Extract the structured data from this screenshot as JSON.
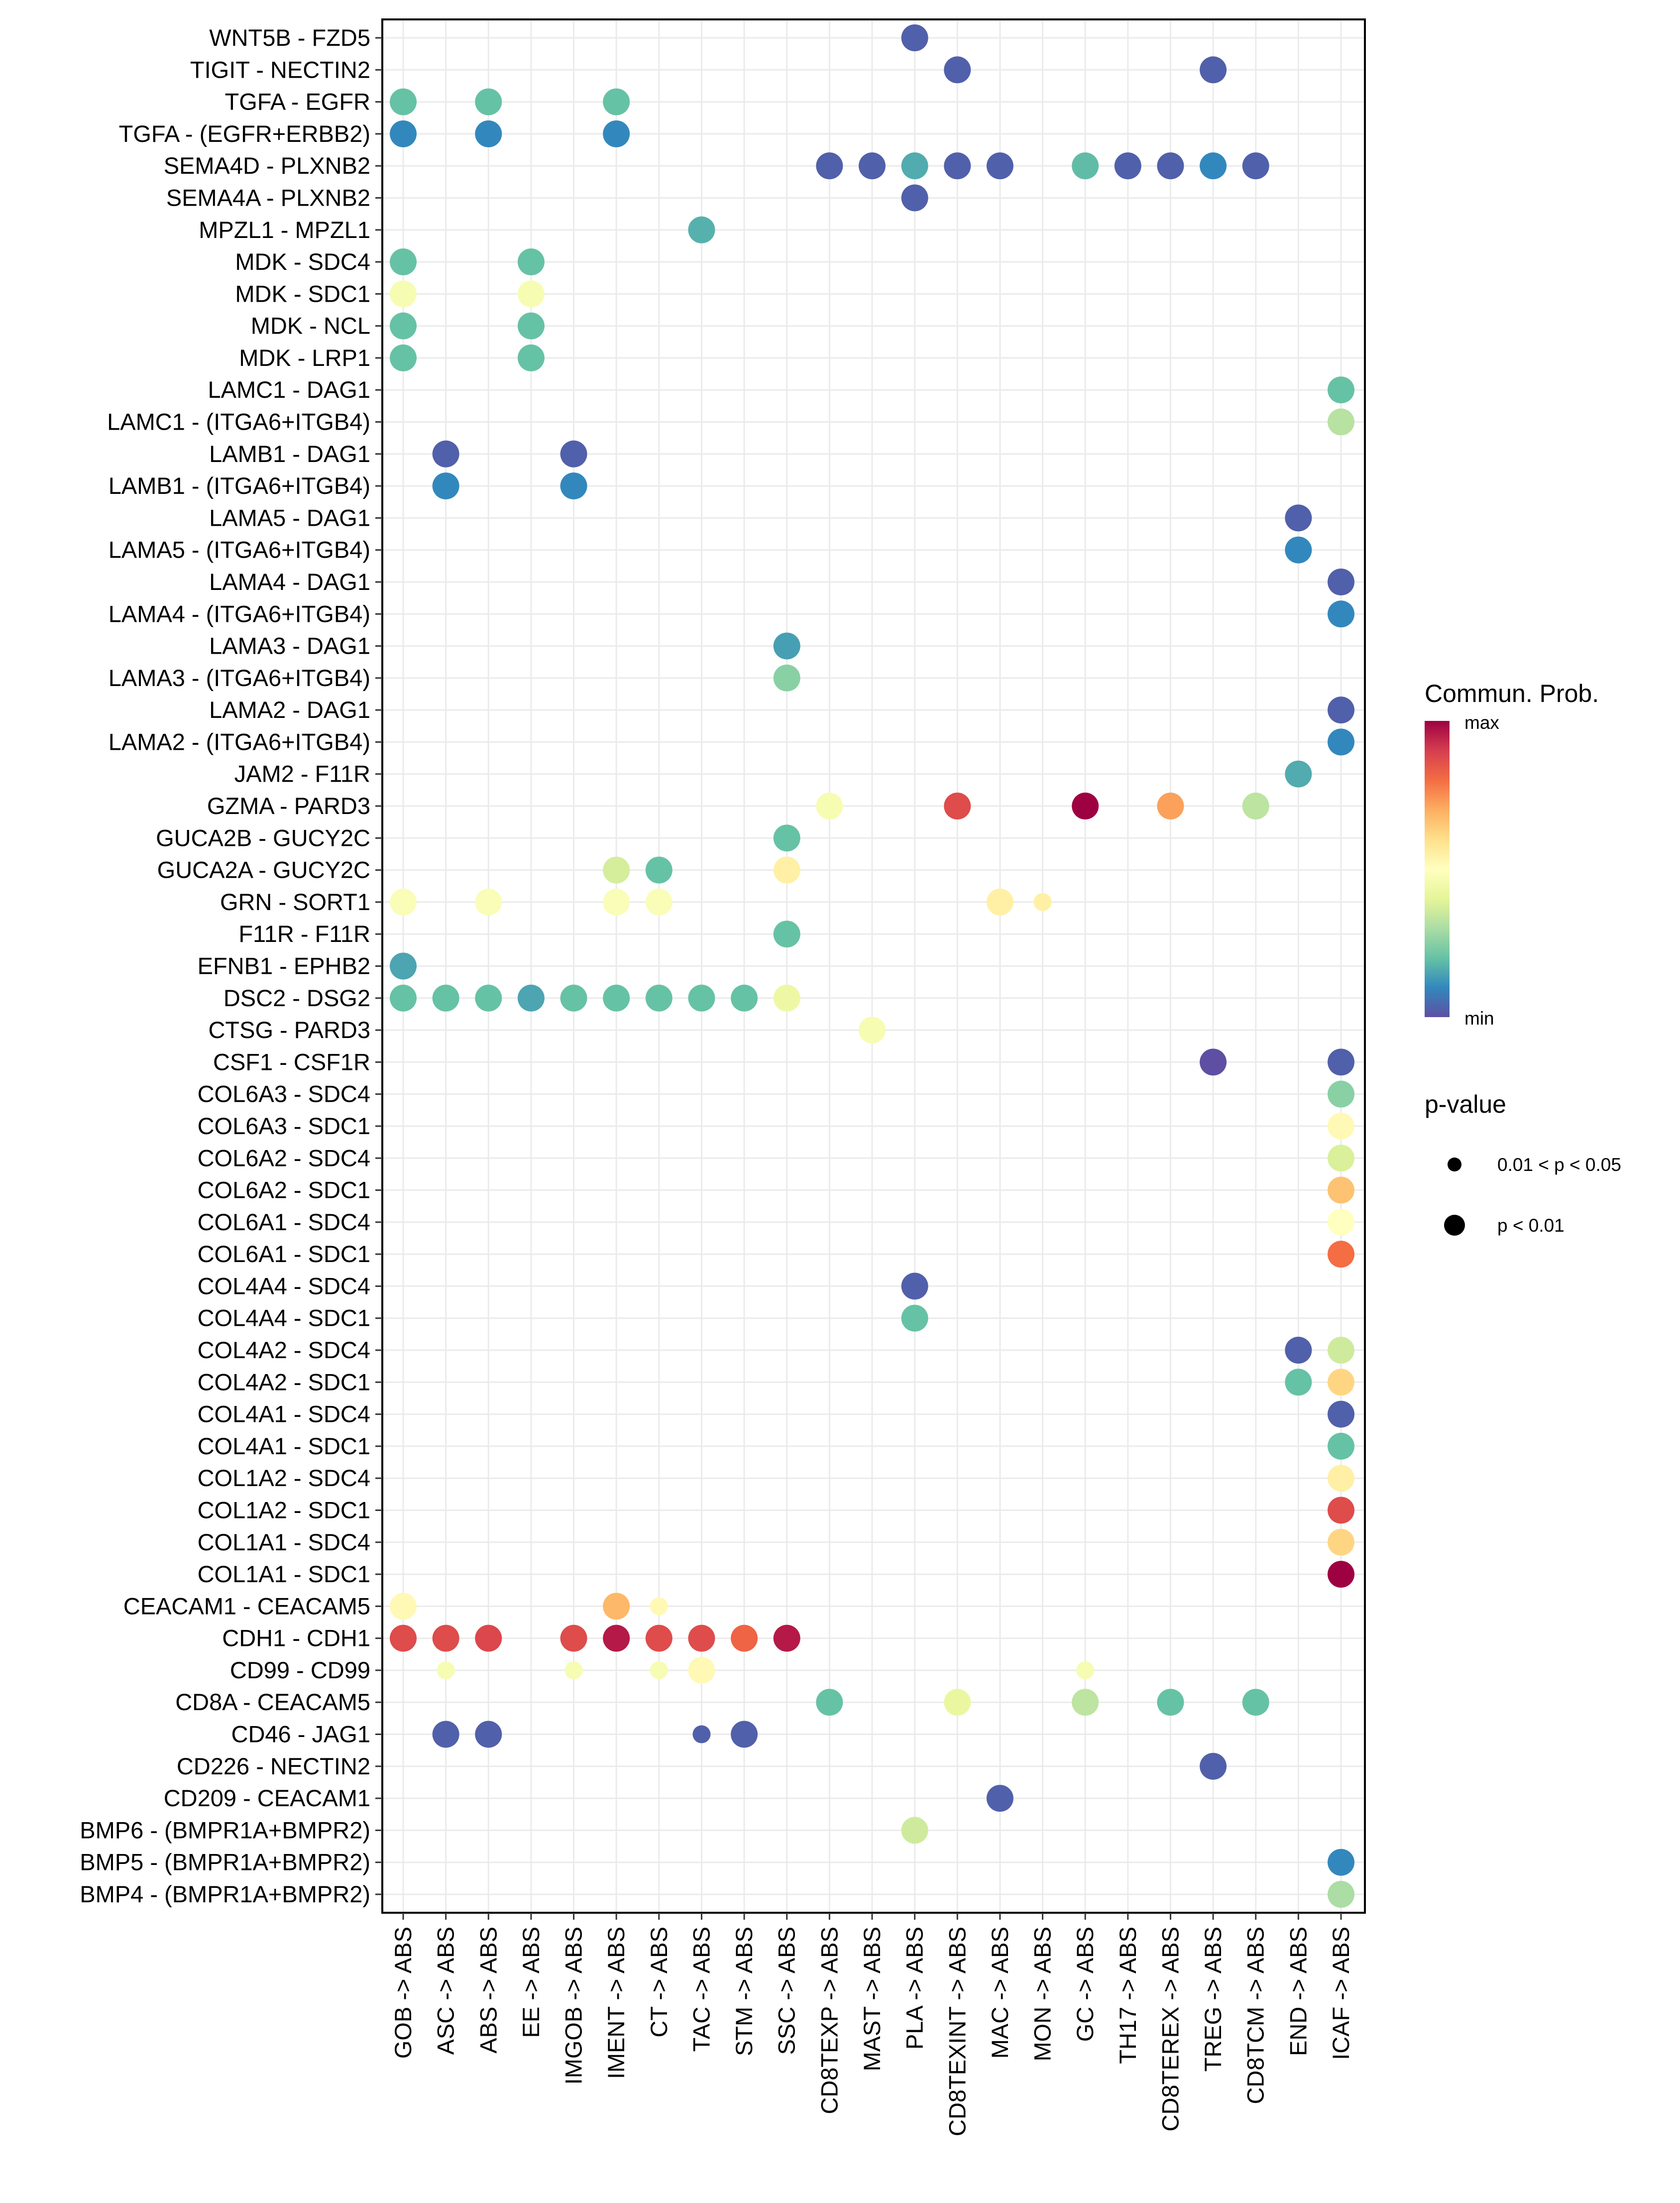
{
  "chart_data": {
    "type": "scatter",
    "subtype": "dot-matrix",
    "title": "",
    "xlabel": "",
    "ylabel": "",
    "grid": true,
    "x_categories": [
      "GOB -> ABS",
      "ASC -> ABS",
      "ABS -> ABS",
      "EE -> ABS",
      "IMGOB -> ABS",
      "IMENT -> ABS",
      "CT -> ABS",
      "TAC -> ABS",
      "STM -> ABS",
      "SSC -> ABS",
      "CD8TEXP -> ABS",
      "MAST -> ABS",
      "PLA -> ABS",
      "CD8TEXINT -> ABS",
      "MAC -> ABS",
      "MON -> ABS",
      "GC -> ABS",
      "TH17 -> ABS",
      "CD8TEREX -> ABS",
      "TREG -> ABS",
      "CD8TCM -> ABS",
      "END -> ABS",
      "ICAF -> ABS"
    ],
    "y_categories": [
      "WNT5B - FZD5",
      "TIGIT - NECTIN2",
      "TGFA - EGFR",
      "TGFA - (EGFR+ERBB2)",
      "SEMA4D - PLXNB2",
      "SEMA4A - PLXNB2",
      "MPZL1 - MPZL1",
      "MDK - SDC4",
      "MDK - SDC1",
      "MDK - NCL",
      "MDK - LRP1",
      "LAMC1 - DAG1",
      "LAMC1 - (ITGA6+ITGB4)",
      "LAMB1 - DAG1",
      "LAMB1 - (ITGA6+ITGB4)",
      "LAMA5 - DAG1",
      "LAMA5 - (ITGA6+ITGB4)",
      "LAMA4 - DAG1",
      "LAMA4 - (ITGA6+ITGB4)",
      "LAMA3 - DAG1",
      "LAMA3 - (ITGA6+ITGB4)",
      "LAMA2 - DAG1",
      "LAMA2 - (ITGA6+ITGB4)",
      "JAM2 - F11R",
      "GZMA - PARD3",
      "GUCA2B - GUCY2C",
      "GUCA2A - GUCY2C",
      "GRN - SORT1",
      "F11R - F11R",
      "EFNB1 - EPHB2",
      "DSC2 - DSG2",
      "CTSG - PARD3",
      "CSF1 - CSF1R",
      "COL6A3 - SDC4",
      "COL6A3 - SDC1",
      "COL6A2 - SDC4",
      "COL6A2 - SDC1",
      "COL6A1 - SDC4",
      "COL6A1 - SDC1",
      "COL4A4 - SDC4",
      "COL4A4 - SDC1",
      "COL4A2 - SDC4",
      "COL4A2 - SDC1",
      "COL4A1 - SDC4",
      "COL4A1 - SDC1",
      "COL1A2 - SDC4",
      "COL1A2 - SDC1",
      "COL1A1 - SDC4",
      "COL1A1 - SDC1",
      "CEACAM1 - CEACAM5",
      "CDH1 - CDH1",
      "CD99 - CD99",
      "CD8A - CEACAM5",
      "CD46 - JAG1",
      "CD226 - NECTIN2",
      "CD209 - CEACAM1",
      "BMP6 - (BMPR1A+BMPR2)",
      "BMP5 - (BMPR1A+BMPR2)",
      "BMP4 - (BMPR1A+BMPR2)"
    ],
    "value_note": "prob = relative communication probability on the colorbar scale (0 = min, 1 = max); pval: 1 = 'p < 0.01', 2 = '0.01 < p < 0.05'",
    "points": [
      {
        "y": "WNT5B - FZD5",
        "x": "PLA -> ABS",
        "prob": 0.03,
        "pval": 1
      },
      {
        "y": "TIGIT - NECTIN2",
        "x": "CD8TEXINT -> ABS",
        "prob": 0.03,
        "pval": 1
      },
      {
        "y": "TIGIT - NECTIN2",
        "x": "TREG -> ABS",
        "prob": 0.03,
        "pval": 1
      },
      {
        "y": "TGFA - EGFR",
        "x": "GOB -> ABS",
        "prob": 0.2,
        "pval": 1
      },
      {
        "y": "TGFA - EGFR",
        "x": "ABS -> ABS",
        "prob": 0.2,
        "pval": 1
      },
      {
        "y": "TGFA - EGFR",
        "x": "IMENT -> ABS",
        "prob": 0.2,
        "pval": 1
      },
      {
        "y": "TGFA - (EGFR+ERBB2)",
        "x": "GOB -> ABS",
        "prob": 0.1,
        "pval": 1
      },
      {
        "y": "TGFA - (EGFR+ERBB2)",
        "x": "ABS -> ABS",
        "prob": 0.1,
        "pval": 1
      },
      {
        "y": "TGFA - (EGFR+ERBB2)",
        "x": "IMENT -> ABS",
        "prob": 0.1,
        "pval": 1
      },
      {
        "y": "SEMA4D - PLXNB2",
        "x": "CD8TEXP -> ABS",
        "prob": 0.03,
        "pval": 1
      },
      {
        "y": "SEMA4D - PLXNB2",
        "x": "MAST -> ABS",
        "prob": 0.03,
        "pval": 1
      },
      {
        "y": "SEMA4D - PLXNB2",
        "x": "PLA -> ABS",
        "prob": 0.16,
        "pval": 1
      },
      {
        "y": "SEMA4D - PLXNB2",
        "x": "CD8TEXINT -> ABS",
        "prob": 0.03,
        "pval": 1
      },
      {
        "y": "SEMA4D - PLXNB2",
        "x": "MAC -> ABS",
        "prob": 0.03,
        "pval": 1
      },
      {
        "y": "SEMA4D - PLXNB2",
        "x": "GC -> ABS",
        "prob": 0.19,
        "pval": 1
      },
      {
        "y": "SEMA4D - PLXNB2",
        "x": "TH17 -> ABS",
        "prob": 0.03,
        "pval": 1
      },
      {
        "y": "SEMA4D - PLXNB2",
        "x": "CD8TEREX -> ABS",
        "prob": 0.03,
        "pval": 1
      },
      {
        "y": "SEMA4D - PLXNB2",
        "x": "TREG -> ABS",
        "prob": 0.1,
        "pval": 1
      },
      {
        "y": "SEMA4D - PLXNB2",
        "x": "CD8TCM -> ABS",
        "prob": 0.03,
        "pval": 1
      },
      {
        "y": "SEMA4A - PLXNB2",
        "x": "PLA -> ABS",
        "prob": 0.03,
        "pval": 1
      },
      {
        "y": "MPZL1 - MPZL1",
        "x": "TAC -> ABS",
        "prob": 0.17,
        "pval": 1
      },
      {
        "y": "MDK - SDC4",
        "x": "GOB -> ABS",
        "prob": 0.2,
        "pval": 1
      },
      {
        "y": "MDK - SDC4",
        "x": "EE -> ABS",
        "prob": 0.2,
        "pval": 1
      },
      {
        "y": "MDK - SDC1",
        "x": "GOB -> ABS",
        "prob": 0.47,
        "pval": 1
      },
      {
        "y": "MDK - SDC1",
        "x": "EE -> ABS",
        "prob": 0.47,
        "pval": 1
      },
      {
        "y": "MDK - NCL",
        "x": "GOB -> ABS",
        "prob": 0.2,
        "pval": 1
      },
      {
        "y": "MDK - NCL",
        "x": "EE -> ABS",
        "prob": 0.2,
        "pval": 1
      },
      {
        "y": "MDK - LRP1",
        "x": "GOB -> ABS",
        "prob": 0.2,
        "pval": 1
      },
      {
        "y": "MDK - LRP1",
        "x": "EE -> ABS",
        "prob": 0.2,
        "pval": 1
      },
      {
        "y": "LAMC1 - DAG1",
        "x": "ICAF -> ABS",
        "prob": 0.2,
        "pval": 1
      },
      {
        "y": "LAMC1 - (ITGA6+ITGB4)",
        "x": "ICAF -> ABS",
        "prob": 0.32,
        "pval": 1
      },
      {
        "y": "LAMB1 - DAG1",
        "x": "ASC -> ABS",
        "prob": 0.03,
        "pval": 1
      },
      {
        "y": "LAMB1 - DAG1",
        "x": "IMGOB -> ABS",
        "prob": 0.03,
        "pval": 1
      },
      {
        "y": "LAMB1 - (ITGA6+ITGB4)",
        "x": "ASC -> ABS",
        "prob": 0.1,
        "pval": 1
      },
      {
        "y": "LAMB1 - (ITGA6+ITGB4)",
        "x": "IMGOB -> ABS",
        "prob": 0.1,
        "pval": 1
      },
      {
        "y": "LAMA5 - DAG1",
        "x": "END -> ABS",
        "prob": 0.03,
        "pval": 1
      },
      {
        "y": "LAMA5 - (ITGA6+ITGB4)",
        "x": "END -> ABS",
        "prob": 0.1,
        "pval": 1
      },
      {
        "y": "LAMA4 - DAG1",
        "x": "ICAF -> ABS",
        "prob": 0.03,
        "pval": 1
      },
      {
        "y": "LAMA4 - (ITGA6+ITGB4)",
        "x": "ICAF -> ABS",
        "prob": 0.1,
        "pval": 1
      },
      {
        "y": "LAMA3 - DAG1",
        "x": "SSC -> ABS",
        "prob": 0.14,
        "pval": 1
      },
      {
        "y": "LAMA3 - (ITGA6+ITGB4)",
        "x": "SSC -> ABS",
        "prob": 0.25,
        "pval": 1
      },
      {
        "y": "LAMA2 - DAG1",
        "x": "ICAF -> ABS",
        "prob": 0.03,
        "pval": 1
      },
      {
        "y": "LAMA2 - (ITGA6+ITGB4)",
        "x": "ICAF -> ABS",
        "prob": 0.1,
        "pval": 1
      },
      {
        "y": "JAM2 - F11R",
        "x": "END -> ABS",
        "prob": 0.16,
        "pval": 1
      },
      {
        "y": "GZMA - PARD3",
        "x": "CD8TEXP -> ABS",
        "prob": 0.47,
        "pval": 1
      },
      {
        "y": "GZMA - PARD3",
        "x": "CD8TEXINT -> ABS",
        "prob": 0.87,
        "pval": 1
      },
      {
        "y": "GZMA - PARD3",
        "x": "GC -> ABS",
        "prob": 1.0,
        "pval": 1
      },
      {
        "y": "GZMA - PARD3",
        "x": "CD8TEREX -> ABS",
        "prob": 0.72,
        "pval": 1
      },
      {
        "y": "GZMA - PARD3",
        "x": "CD8TCM -> ABS",
        "prob": 0.33,
        "pval": 1
      },
      {
        "y": "GUCA2B - GUCY2C",
        "x": "SSC -> ABS",
        "prob": 0.2,
        "pval": 1
      },
      {
        "y": "GUCA2A - GUCY2C",
        "x": "IMENT -> ABS",
        "prob": 0.37,
        "pval": 1
      },
      {
        "y": "GUCA2A - GUCY2C",
        "x": "CT -> ABS",
        "prob": 0.2,
        "pval": 1
      },
      {
        "y": "GUCA2A - GUCY2C",
        "x": "SSC -> ABS",
        "prob": 0.55,
        "pval": 1
      },
      {
        "y": "GRN - SORT1",
        "x": "GOB -> ABS",
        "prob": 0.48,
        "pval": 1
      },
      {
        "y": "GRN - SORT1",
        "x": "ABS -> ABS",
        "prob": 0.48,
        "pval": 1
      },
      {
        "y": "GRN - SORT1",
        "x": "IMENT -> ABS",
        "prob": 0.48,
        "pval": 1
      },
      {
        "y": "GRN - SORT1",
        "x": "CT -> ABS",
        "prob": 0.48,
        "pval": 1
      },
      {
        "y": "GRN - SORT1",
        "x": "MAC -> ABS",
        "prob": 0.55,
        "pval": 1
      },
      {
        "y": "GRN - SORT1",
        "x": "MON -> ABS",
        "prob": 0.55,
        "pval": 2
      },
      {
        "y": "F11R - F11R",
        "x": "SSC -> ABS",
        "prob": 0.2,
        "pval": 1
      },
      {
        "y": "EFNB1 - EPHB2",
        "x": "GOB -> ABS",
        "prob": 0.15,
        "pval": 1
      },
      {
        "y": "DSC2 - DSG2",
        "x": "GOB -> ABS",
        "prob": 0.2,
        "pval": 1
      },
      {
        "y": "DSC2 - DSG2",
        "x": "ASC -> ABS",
        "prob": 0.2,
        "pval": 1
      },
      {
        "y": "DSC2 - DSG2",
        "x": "ABS -> ABS",
        "prob": 0.2,
        "pval": 1
      },
      {
        "y": "DSC2 - DSG2",
        "x": "EE -> ABS",
        "prob": 0.15,
        "pval": 1
      },
      {
        "y": "DSC2 - DSG2",
        "x": "IMGOB -> ABS",
        "prob": 0.2,
        "pval": 1
      },
      {
        "y": "DSC2 - DSG2",
        "x": "IMENT -> ABS",
        "prob": 0.2,
        "pval": 1
      },
      {
        "y": "DSC2 - DSG2",
        "x": "CT -> ABS",
        "prob": 0.2,
        "pval": 1
      },
      {
        "y": "DSC2 - DSG2",
        "x": "TAC -> ABS",
        "prob": 0.2,
        "pval": 1
      },
      {
        "y": "DSC2 - DSG2",
        "x": "STM -> ABS",
        "prob": 0.2,
        "pval": 1
      },
      {
        "y": "DSC2 - DSG2",
        "x": "SSC -> ABS",
        "prob": 0.43,
        "pval": 1
      },
      {
        "y": "CTSG - PARD3",
        "x": "MAST -> ABS",
        "prob": 0.47,
        "pval": 1
      },
      {
        "y": "CSF1 - CSF1R",
        "x": "TREG -> ABS",
        "prob": 0.0,
        "pval": 1
      },
      {
        "y": "CSF1 - CSF1R",
        "x": "ICAF -> ABS",
        "prob": 0.03,
        "pval": 1
      },
      {
        "y": "COL6A3 - SDC4",
        "x": "ICAF -> ABS",
        "prob": 0.25,
        "pval": 1
      },
      {
        "y": "COL6A3 - SDC1",
        "x": "ICAF -> ABS",
        "prob": 0.52,
        "pval": 1
      },
      {
        "y": "COL6A2 - SDC4",
        "x": "ICAF -> ABS",
        "prob": 0.38,
        "pval": 1
      },
      {
        "y": "COL6A2 - SDC1",
        "x": "ICAF -> ABS",
        "prob": 0.66,
        "pval": 1
      },
      {
        "y": "COL6A1 - SDC4",
        "x": "ICAF -> ABS",
        "prob": 0.5,
        "pval": 1
      },
      {
        "y": "COL6A1 - SDC1",
        "x": "ICAF -> ABS",
        "prob": 0.8,
        "pval": 1
      },
      {
        "y": "COL4A4 - SDC4",
        "x": "PLA -> ABS",
        "prob": 0.03,
        "pval": 1
      },
      {
        "y": "COL4A4 - SDC1",
        "x": "PLA -> ABS",
        "prob": 0.2,
        "pval": 1
      },
      {
        "y": "COL4A2 - SDC4",
        "x": "END -> ABS",
        "prob": 0.03,
        "pval": 1
      },
      {
        "y": "COL4A2 - SDC4",
        "x": "ICAF -> ABS",
        "prob": 0.36,
        "pval": 1
      },
      {
        "y": "COL4A2 - SDC1",
        "x": "END -> ABS",
        "prob": 0.2,
        "pval": 1
      },
      {
        "y": "COL4A2 - SDC1",
        "x": "ICAF -> ABS",
        "prob": 0.62,
        "pval": 1
      },
      {
        "y": "COL4A1 - SDC4",
        "x": "ICAF -> ABS",
        "prob": 0.03,
        "pval": 1
      },
      {
        "y": "COL4A1 - SDC1",
        "x": "ICAF -> ABS",
        "prob": 0.2,
        "pval": 1
      },
      {
        "y": "COL1A2 - SDC4",
        "x": "ICAF -> ABS",
        "prob": 0.55,
        "pval": 1
      },
      {
        "y": "COL1A2 - SDC1",
        "x": "ICAF -> ABS",
        "prob": 0.87,
        "pval": 1
      },
      {
        "y": "COL1A1 - SDC4",
        "x": "ICAF -> ABS",
        "prob": 0.62,
        "pval": 1
      },
      {
        "y": "COL1A1 - SDC1",
        "x": "ICAF -> ABS",
        "prob": 1.0,
        "pval": 1
      },
      {
        "y": "CEACAM1 - CEACAM5",
        "x": "GOB -> ABS",
        "prob": 0.52,
        "pval": 1
      },
      {
        "y": "CEACAM1 - CEACAM5",
        "x": "IMENT -> ABS",
        "prob": 0.68,
        "pval": 1
      },
      {
        "y": "CEACAM1 - CEACAM5",
        "x": "CT -> ABS",
        "prob": 0.52,
        "pval": 2
      },
      {
        "y": "CDH1 - CDH1",
        "x": "GOB -> ABS",
        "prob": 0.87,
        "pval": 1
      },
      {
        "y": "CDH1 - CDH1",
        "x": "ASC -> ABS",
        "prob": 0.87,
        "pval": 1
      },
      {
        "y": "CDH1 - CDH1",
        "x": "ABS -> ABS",
        "prob": 0.88,
        "pval": 1
      },
      {
        "y": "CDH1 - CDH1",
        "x": "IMGOB -> ABS",
        "prob": 0.87,
        "pval": 1
      },
      {
        "y": "CDH1 - CDH1",
        "x": "IMENT -> ABS",
        "prob": 0.96,
        "pval": 1
      },
      {
        "y": "CDH1 - CDH1",
        "x": "CT -> ABS",
        "prob": 0.87,
        "pval": 1
      },
      {
        "y": "CDH1 - CDH1",
        "x": "TAC -> ABS",
        "prob": 0.87,
        "pval": 1
      },
      {
        "y": "CDH1 - CDH1",
        "x": "STM -> ABS",
        "prob": 0.82,
        "pval": 1
      },
      {
        "y": "CDH1 - CDH1",
        "x": "SSC -> ABS",
        "prob": 0.96,
        "pval": 1
      },
      {
        "y": "CD99 - CD99",
        "x": "ASC -> ABS",
        "prob": 0.47,
        "pval": 2
      },
      {
        "y": "CD99 - CD99",
        "x": "IMGOB -> ABS",
        "prob": 0.47,
        "pval": 2
      },
      {
        "y": "CD99 - CD99",
        "x": "CT -> ABS",
        "prob": 0.47,
        "pval": 2
      },
      {
        "y": "CD99 - CD99",
        "x": "TAC -> ABS",
        "prob": 0.52,
        "pval": 1
      },
      {
        "y": "CD99 - CD99",
        "x": "GC -> ABS",
        "prob": 0.47,
        "pval": 2
      },
      {
        "y": "CD8A - CEACAM5",
        "x": "CD8TEXP -> ABS",
        "prob": 0.2,
        "pval": 1
      },
      {
        "y": "CD8A - CEACAM5",
        "x": "CD8TEXINT -> ABS",
        "prob": 0.42,
        "pval": 1
      },
      {
        "y": "CD8A - CEACAM5",
        "x": "GC -> ABS",
        "prob": 0.33,
        "pval": 1
      },
      {
        "y": "CD8A - CEACAM5",
        "x": "CD8TEREX -> ABS",
        "prob": 0.2,
        "pval": 1
      },
      {
        "y": "CD8A - CEACAM5",
        "x": "CD8TCM -> ABS",
        "prob": 0.2,
        "pval": 1
      },
      {
        "y": "CD46 - JAG1",
        "x": "ASC -> ABS",
        "prob": 0.03,
        "pval": 1
      },
      {
        "y": "CD46 - JAG1",
        "x": "ABS -> ABS",
        "prob": 0.03,
        "pval": 1
      },
      {
        "y": "CD46 - JAG1",
        "x": "TAC -> ABS",
        "prob": 0.03,
        "pval": 2
      },
      {
        "y": "CD46 - JAG1",
        "x": "STM -> ABS",
        "prob": 0.03,
        "pval": 1
      },
      {
        "y": "CD226 - NECTIN2",
        "x": "TREG -> ABS",
        "prob": 0.03,
        "pval": 1
      },
      {
        "y": "CD209 - CEACAM1",
        "x": "MAC -> ABS",
        "prob": 0.03,
        "pval": 1
      },
      {
        "y": "BMP6 - (BMPR1A+BMPR2)",
        "x": "PLA -> ABS",
        "prob": 0.36,
        "pval": 1
      },
      {
        "y": "BMP5 - (BMPR1A+BMPR2)",
        "x": "ICAF -> ABS",
        "prob": 0.1,
        "pval": 1
      },
      {
        "y": "BMP4 - (BMPR1A+BMPR2)",
        "x": "ICAF -> ABS",
        "prob": 0.3,
        "pval": 1
      }
    ],
    "color_legend": {
      "title": "Commun. Prob.",
      "max_label": "max",
      "min_label": "min",
      "palette": [
        "#5E4FA2",
        "#3288BD",
        "#66C2A5",
        "#ABDDA4",
        "#E6F598",
        "#FFFFBF",
        "#FEE08B",
        "#FDAE61",
        "#F46D43",
        "#D53E4F",
        "#9E0142"
      ],
      "placement": "right"
    },
    "size_legend": {
      "title": "p-value",
      "entries": [
        {
          "label": "0.01 < p < 0.05",
          "pval": 2
        },
        {
          "label": "p < 0.01",
          "pval": 1
        }
      ],
      "placement": "right"
    }
  }
}
